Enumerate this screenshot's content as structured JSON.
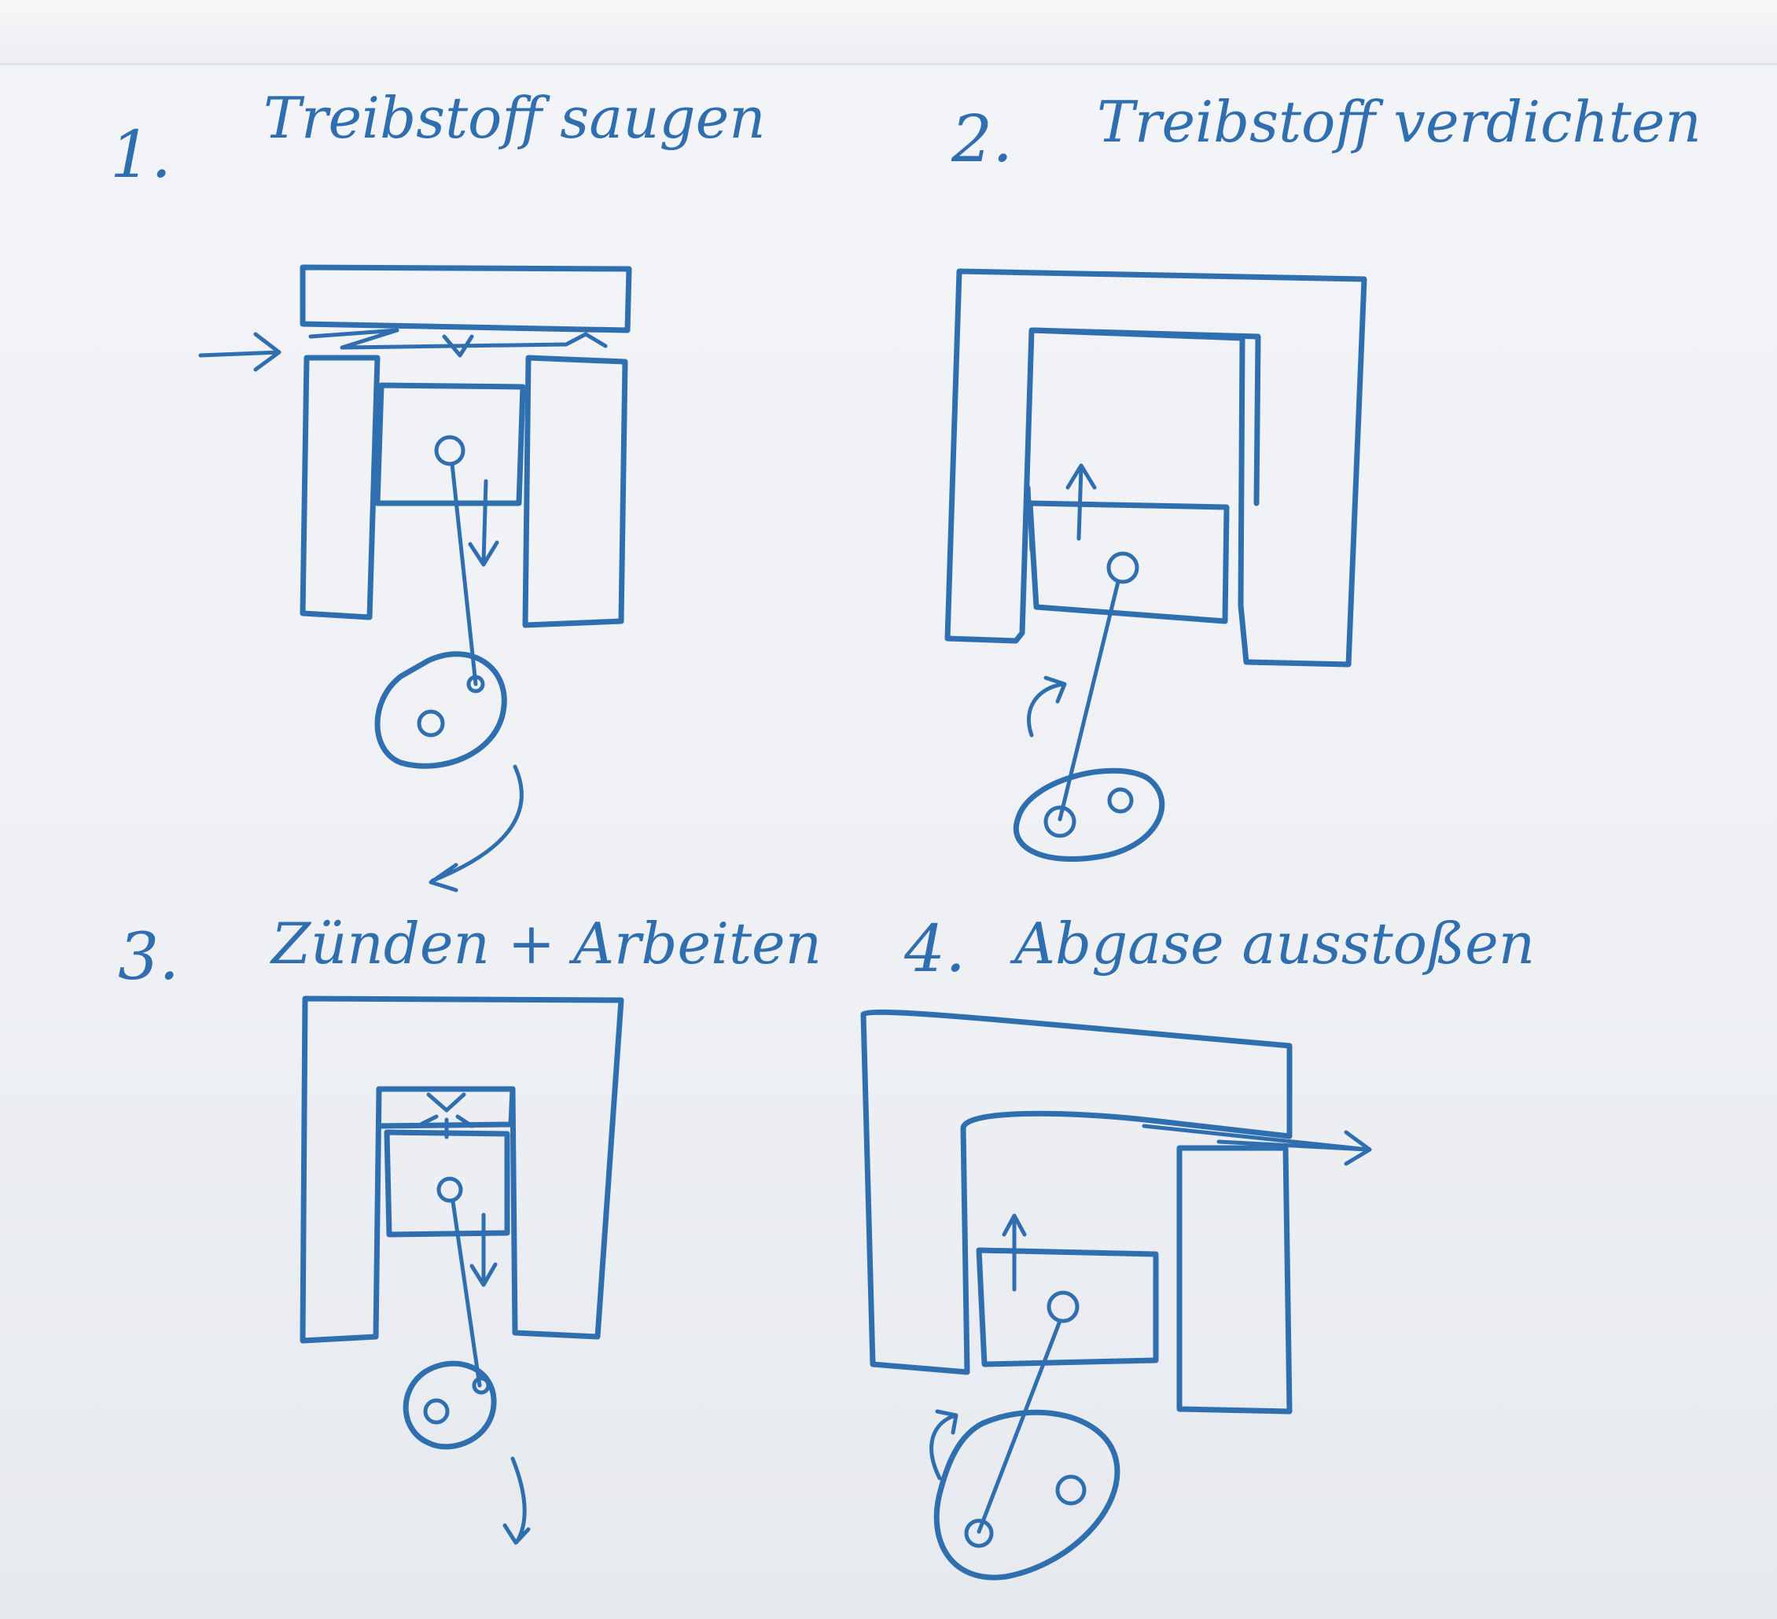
{
  "steps": [
    {
      "number": "1.",
      "title": "Treibstoff saugen"
    },
    {
      "number": "2.",
      "title": "Treibstoff verdichten"
    },
    {
      "number": "3.",
      "title": "Zünden + Arbeiten"
    },
    {
      "number": "4.",
      "title": "Abgase ausstoßen"
    }
  ],
  "colors": {
    "ink": "#2f6fb0",
    "board": "#eef0f4"
  },
  "icons": [
    "arrow-right-icon",
    "arrow-down-icon",
    "arrow-up-icon",
    "curved-arrow-icon",
    "spark-icon"
  ]
}
